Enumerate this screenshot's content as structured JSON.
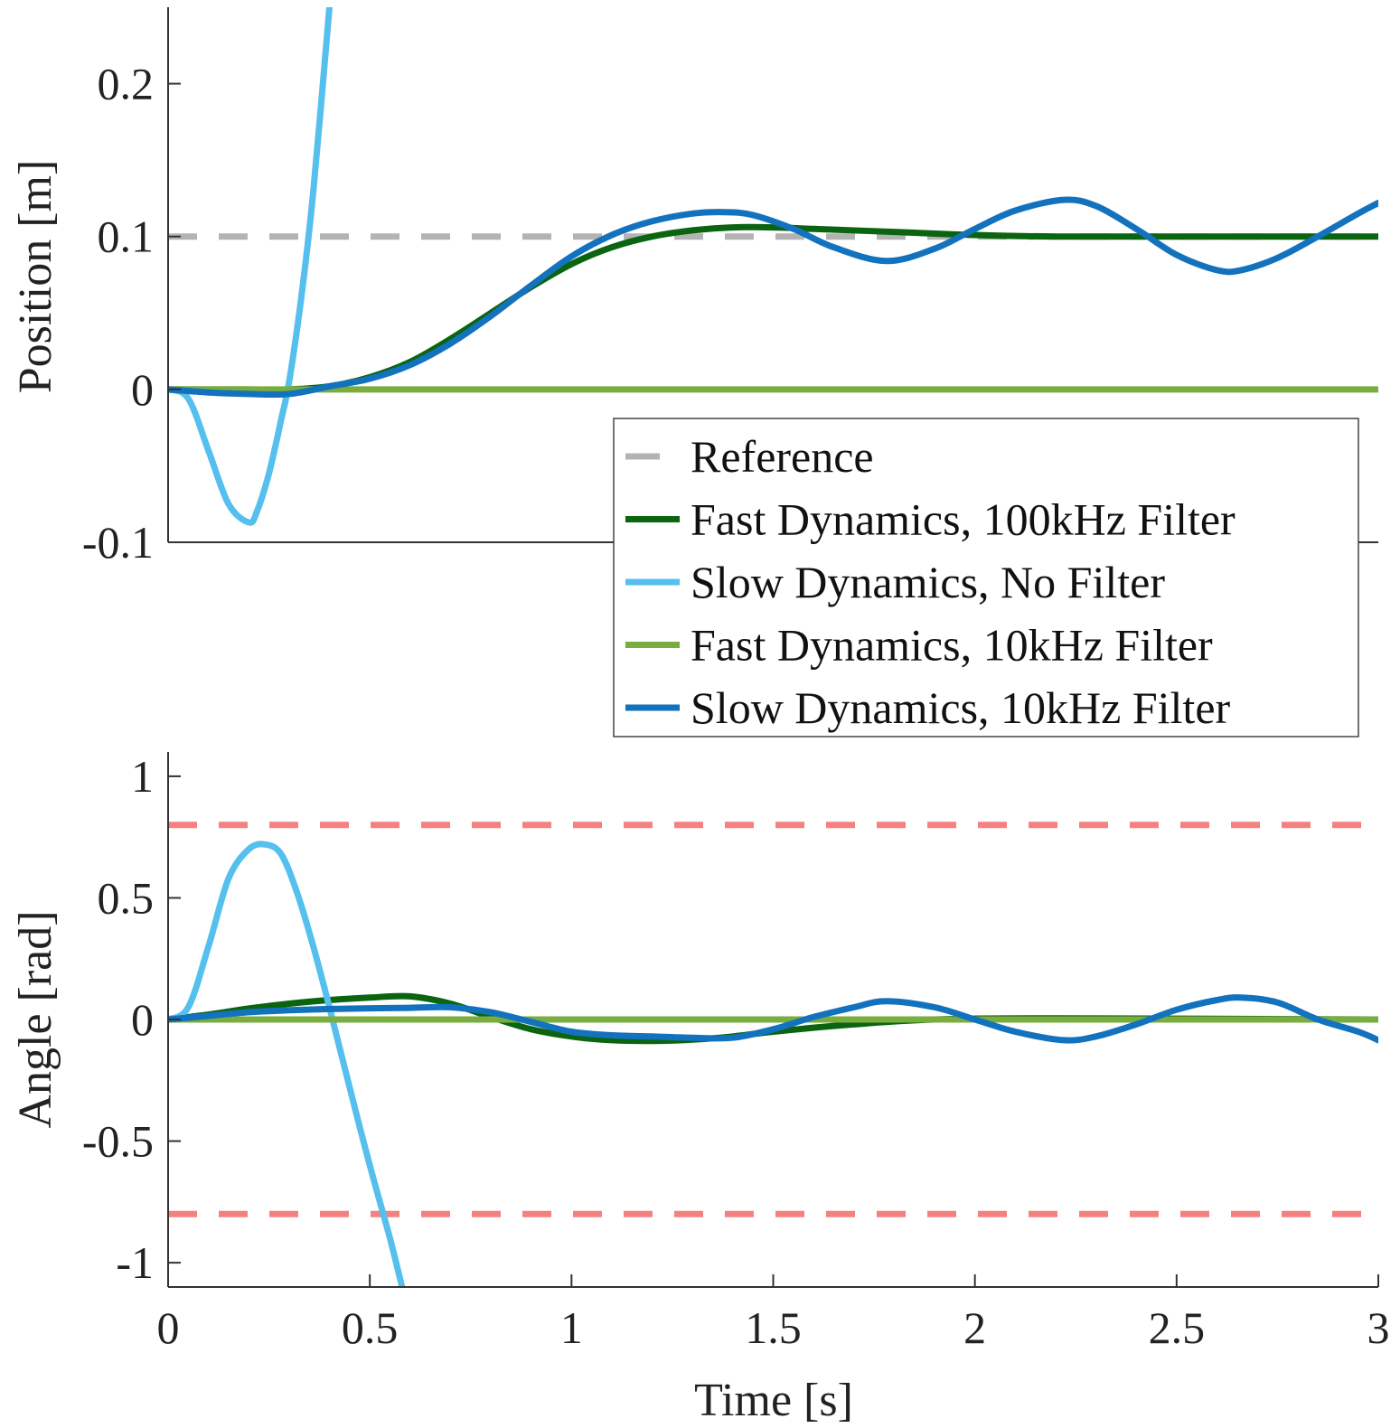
{
  "chart_data": [
    {
      "type": "line",
      "id": "position",
      "ylabel": "Position [m]",
      "xlabel": "",
      "xlim": [
        0,
        3
      ],
      "ylim": [
        -0.1,
        0.25
      ],
      "yticks": [
        -0.1,
        0,
        0.1,
        0.2
      ],
      "ytick_labels": [
        "-0.1",
        "0",
        "0.1",
        "0.2"
      ],
      "series": [
        {
          "name": "Reference",
          "color": "#b3b3b3",
          "dash": true,
          "x": [
            0,
            3
          ],
          "y": [
            0.1,
            0.1
          ]
        },
        {
          "name": "Fast Dynamics, 100kHz Filter",
          "color": "#0b6410",
          "dash": false,
          "x": [
            0,
            0.1,
            0.2,
            0.3,
            0.4,
            0.5,
            0.6,
            0.7,
            0.8,
            0.9,
            1.0,
            1.1,
            1.2,
            1.3,
            1.4,
            1.5,
            1.6,
            1.8,
            2.0,
            2.2,
            2.5,
            3.0
          ],
          "y": [
            0,
            0,
            0,
            0,
            0.002,
            0.008,
            0.018,
            0.033,
            0.05,
            0.067,
            0.082,
            0.093,
            0.1,
            0.104,
            0.106,
            0.106,
            0.105,
            0.103,
            0.101,
            0.1,
            0.1,
            0.1
          ]
        },
        {
          "name": "Slow Dynamics, No Filter",
          "color": "#55bfed",
          "dash": false,
          "x": [
            0,
            0.05,
            0.1,
            0.15,
            0.2,
            0.22,
            0.25,
            0.28,
            0.3,
            0.33,
            0.36,
            0.4
          ],
          "y": [
            0,
            -0.006,
            -0.04,
            -0.075,
            -0.087,
            -0.08,
            -0.055,
            -0.02,
            0.005,
            0.06,
            0.13,
            0.25
          ]
        },
        {
          "name": "Fast Dynamics, 10kHz Filter",
          "color": "#79ad3f",
          "dash": false,
          "x": [
            0,
            3
          ],
          "y": [
            0,
            0
          ]
        },
        {
          "name": "Slow Dynamics, 10kHz Filter",
          "color": "#1372be",
          "dash": false,
          "x": [
            0,
            0.1,
            0.2,
            0.3,
            0.4,
            0.5,
            0.6,
            0.7,
            0.8,
            0.9,
            1.0,
            1.1,
            1.2,
            1.3,
            1.38,
            1.45,
            1.55,
            1.65,
            1.78,
            1.9,
            2.0,
            2.1,
            2.22,
            2.3,
            2.4,
            2.5,
            2.6,
            2.66,
            2.75,
            2.85,
            2.95,
            3.0
          ],
          "y": [
            0,
            -0.002,
            -0.003,
            -0.003,
            0.002,
            0.007,
            0.016,
            0.03,
            0.048,
            0.068,
            0.087,
            0.101,
            0.11,
            0.115,
            0.116,
            0.114,
            0.105,
            0.093,
            0.084,
            0.092,
            0.105,
            0.117,
            0.124,
            0.12,
            0.105,
            0.088,
            0.078,
            0.078,
            0.086,
            0.1,
            0.115,
            0.122
          ]
        }
      ]
    },
    {
      "type": "line",
      "id": "angle",
      "ylabel": "Angle [rad]",
      "xlabel": "Time [s]",
      "xlim": [
        0,
        3
      ],
      "ylim": [
        -1.1,
        1.1
      ],
      "xticks": [
        0,
        0.5,
        1,
        1.5,
        2,
        2.5,
        3
      ],
      "xtick_labels": [
        "0",
        "0.5",
        "1",
        "1.5",
        "2",
        "2.5",
        "3"
      ],
      "yticks": [
        -1,
        -0.5,
        0,
        0.5,
        1
      ],
      "ytick_labels": [
        "-1",
        "-0.5",
        "0",
        "0.5",
        "1"
      ],
      "series": [
        {
          "name": "Upper Limit",
          "color": "#f48080",
          "dash": true,
          "x": [
            0,
            3
          ],
          "y": [
            0.8,
            0.8
          ]
        },
        {
          "name": "Lower Limit",
          "color": "#f48080",
          "dash": true,
          "x": [
            0,
            3
          ],
          "y": [
            -0.8,
            -0.8
          ]
        },
        {
          "name": "Fast Dynamics, 100kHz Filter",
          "color": "#0b6410",
          "dash": false,
          "x": [
            0,
            0.1,
            0.2,
            0.3,
            0.4,
            0.5,
            0.6,
            0.7,
            0.8,
            0.9,
            1.0,
            1.1,
            1.2,
            1.3,
            1.4,
            1.5,
            1.7,
            1.9,
            2.2,
            3.0
          ],
          "y": [
            0,
            0.02,
            0.045,
            0.065,
            0.08,
            0.09,
            0.095,
            0.065,
            0.01,
            -0.04,
            -0.07,
            -0.085,
            -0.088,
            -0.083,
            -0.07,
            -0.05,
            -0.02,
            0,
            0.005,
            0
          ]
        },
        {
          "name": "Slow Dynamics, No Filter",
          "color": "#55bfed",
          "dash": false,
          "x": [
            0,
            0.05,
            0.1,
            0.15,
            0.2,
            0.24,
            0.28,
            0.32,
            0.36,
            0.4,
            0.45,
            0.5,
            0.55,
            0.58
          ],
          "y": [
            0,
            0.05,
            0.3,
            0.58,
            0.7,
            0.72,
            0.68,
            0.52,
            0.3,
            0.05,
            -0.28,
            -0.6,
            -0.9,
            -1.1
          ]
        },
        {
          "name": "Fast Dynamics, 10kHz Filter",
          "color": "#79ad3f",
          "dash": false,
          "x": [
            0,
            3
          ],
          "y": [
            0,
            0
          ]
        },
        {
          "name": "Slow Dynamics, 10kHz Filter",
          "color": "#1372be",
          "dash": false,
          "x": [
            0,
            0.1,
            0.2,
            0.3,
            0.4,
            0.5,
            0.6,
            0.7,
            0.8,
            0.9,
            1.0,
            1.1,
            1.2,
            1.3,
            1.4,
            1.5,
            1.6,
            1.7,
            1.78,
            1.9,
            2.0,
            2.1,
            2.22,
            2.3,
            2.4,
            2.5,
            2.6,
            2.66,
            2.75,
            2.85,
            2.95,
            3.0
          ],
          "y": [
            0,
            0.015,
            0.03,
            0.038,
            0.043,
            0.046,
            0.048,
            0.05,
            0.03,
            -0.01,
            -0.05,
            -0.065,
            -0.07,
            -0.075,
            -0.075,
            -0.04,
            0.01,
            0.05,
            0.075,
            0.05,
            0.0,
            -0.05,
            -0.085,
            -0.07,
            -0.02,
            0.04,
            0.08,
            0.09,
            0.07,
            0.0,
            -0.05,
            -0.085
          ]
        }
      ]
    }
  ],
  "legend": {
    "entries": [
      {
        "label": "Reference",
        "color": "#b3b3b3",
        "dash": true
      },
      {
        "label": "Fast Dynamics, 100kHz Filter",
        "color": "#0b6410",
        "dash": false
      },
      {
        "label": "Slow Dynamics, No Filter",
        "color": "#55bfed",
        "dash": false
      },
      {
        "label": "Fast Dynamics, 10kHz Filter",
        "color": "#79ad3f",
        "dash": false
      },
      {
        "label": "Slow Dynamics, 10kHz Filter",
        "color": "#1372be",
        "dash": false
      }
    ]
  }
}
